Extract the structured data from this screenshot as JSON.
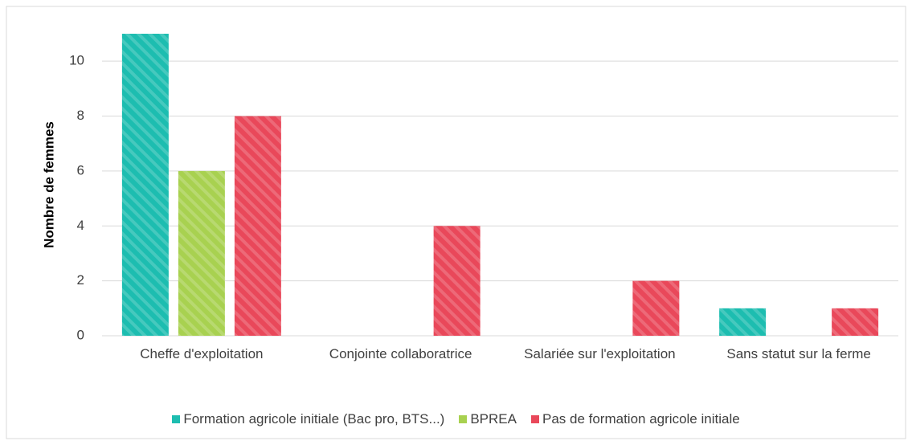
{
  "chart_data": {
    "type": "bar",
    "y_label": "Nombre de femmes",
    "categories": [
      "Cheffe d'exploitation",
      "Conjointe collaboratrice",
      "Salariée sur l'exploitation",
      "Sans statut sur la ferme"
    ],
    "series": [
      {
        "name": "Formation agricole initiale (Bac pro, BTS...)",
        "color": "#1dbdb0",
        "values": [
          11,
          0,
          0,
          1
        ]
      },
      {
        "name": "BPREA",
        "color": "#a8d150",
        "values": [
          6,
          0,
          0,
          0
        ]
      },
      {
        "name": "Pas de formation agricole initiale",
        "color": "#e9485a",
        "values": [
          8,
          4,
          2,
          1
        ]
      }
    ],
    "ylim": [
      0,
      11
    ],
    "yticks": [
      0,
      2,
      4,
      6,
      8,
      10
    ],
    "grid": true,
    "legend": "bottom"
  }
}
